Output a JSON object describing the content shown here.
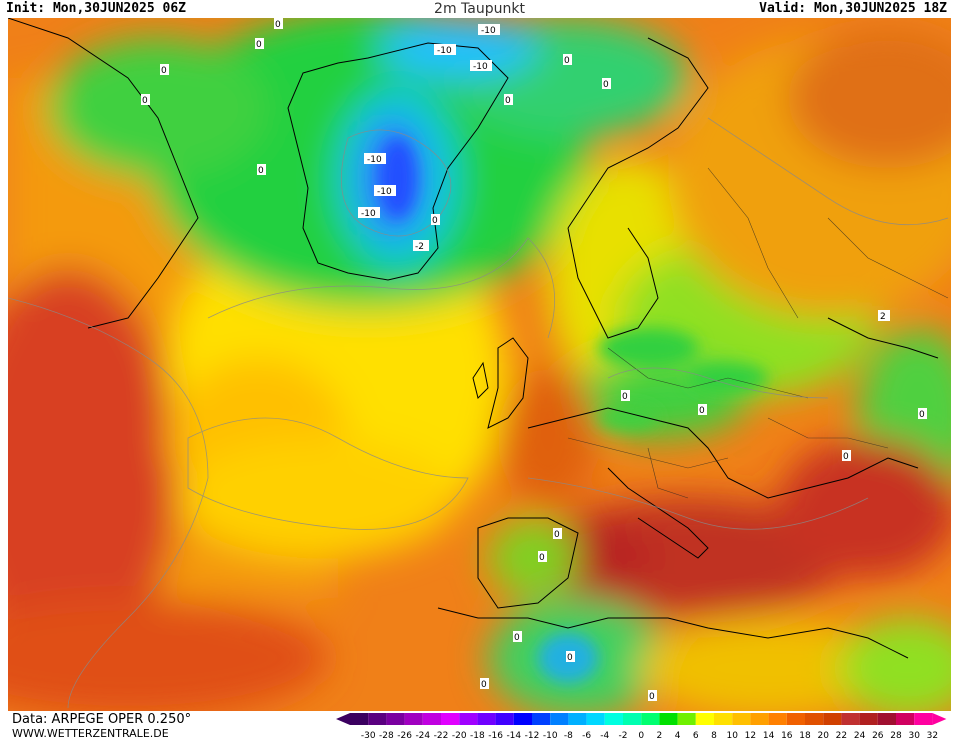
{
  "header": {
    "init": "Init: Mon,30JUN2025 06Z",
    "title": "2m Taupunkt",
    "valid": "Valid: Mon,30JUN2025 18Z"
  },
  "footer": {
    "data_source": "Data: ARPEGE OPER 0.250°",
    "website": "WWW.WETTERZENTRALE.DE"
  },
  "legend": {
    "ticks": [
      "-30",
      "-28",
      "-26",
      "-24",
      "-22",
      "-20",
      "-18",
      "-16",
      "-14",
      "-12",
      "-10",
      "-8",
      "-6",
      "-4",
      "-2",
      "0",
      "2",
      "4",
      "6",
      "8",
      "10",
      "12",
      "14",
      "16",
      "18",
      "20",
      "22",
      "24",
      "26",
      "28",
      "30",
      "32"
    ],
    "colors": [
      "#3b0060",
      "#5a0080",
      "#7a00a0",
      "#a000c0",
      "#c000e0",
      "#e000ff",
      "#a000ff",
      "#7000ff",
      "#4000ff",
      "#0000ff",
      "#0040ff",
      "#0080ff",
      "#00b0ff",
      "#00d8ff",
      "#00ffe0",
      "#00ffb0",
      "#00ff70",
      "#00e000",
      "#70f000",
      "#ffff00",
      "#ffe000",
      "#ffc000",
      "#ffa000",
      "#ff8000",
      "#f06000",
      "#e05000",
      "#d04000",
      "#c03030",
      "#b02020",
      "#a01030",
      "#d00060",
      "#ff00a0"
    ]
  },
  "map_labels": [
    "0",
    "-10",
    "-2",
    "2"
  ]
}
